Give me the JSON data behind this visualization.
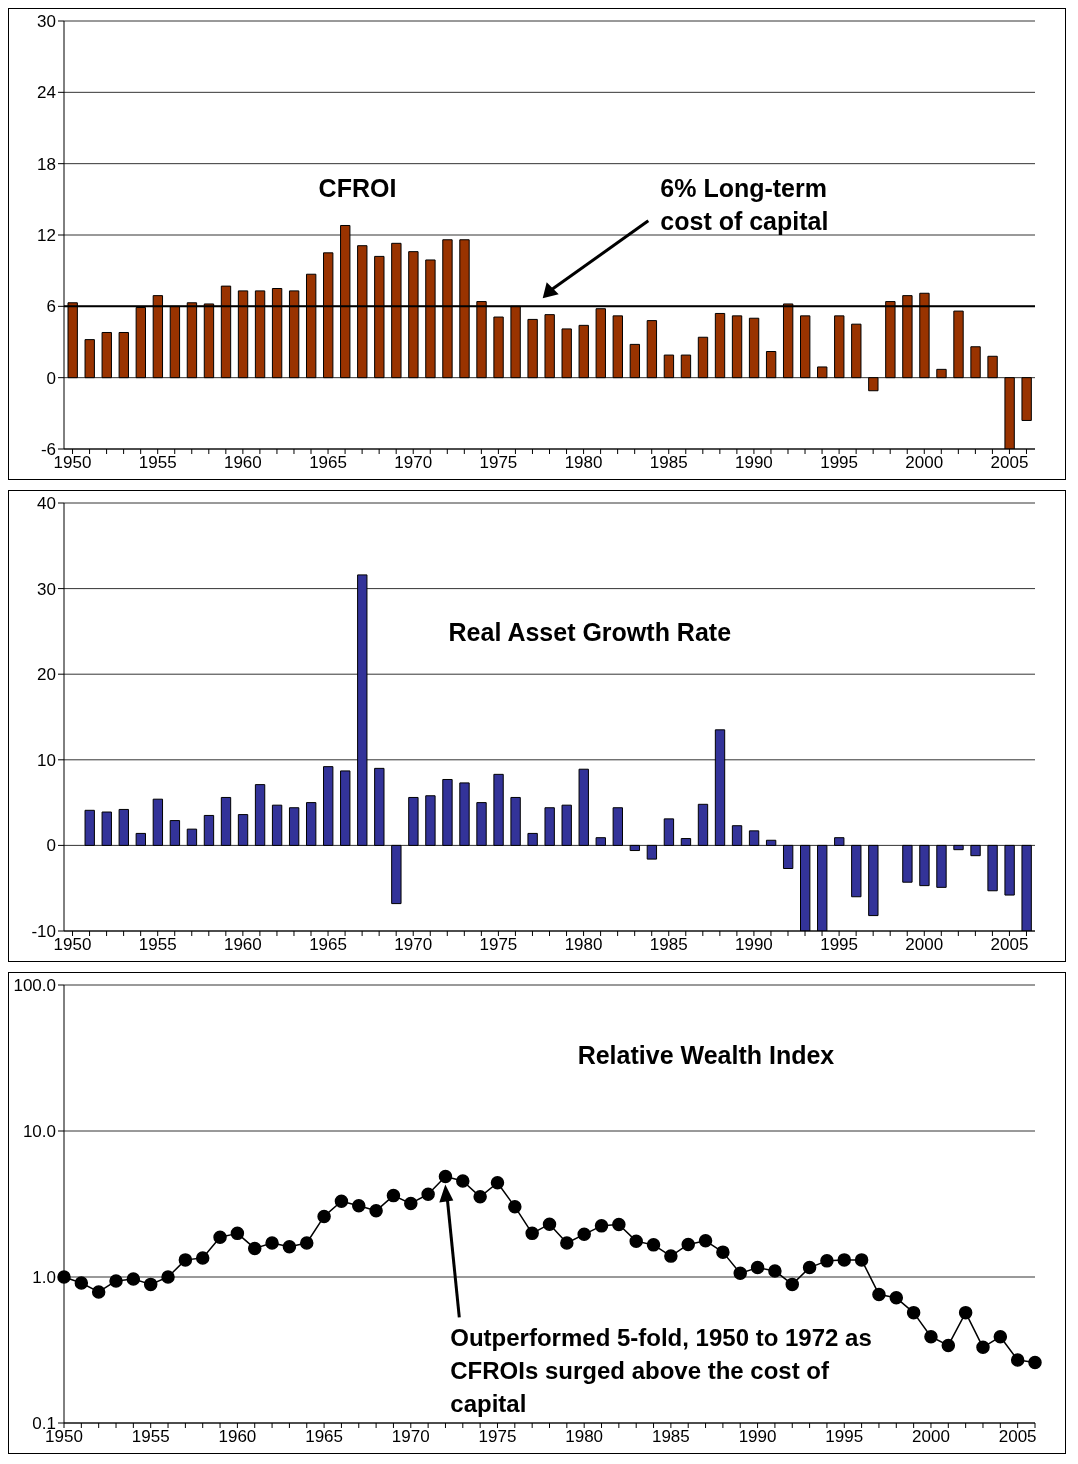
{
  "chart_data": [
    {
      "type": "bar",
      "title": "CFROI",
      "categories": [
        "1950",
        null,
        null,
        null,
        null,
        "1955",
        null,
        null,
        null,
        null,
        "1960",
        null,
        null,
        null,
        null,
        "1965",
        null,
        null,
        null,
        null,
        "1970",
        null,
        null,
        null,
        null,
        "1975",
        null,
        null,
        null,
        null,
        "1980",
        null,
        null,
        null,
        null,
        "1985",
        null,
        null,
        null,
        null,
        "1990",
        null,
        null,
        null,
        null,
        "1995",
        null,
        null,
        null,
        null,
        "2000",
        null,
        null,
        null,
        null,
        "2005",
        null
      ],
      "values": [
        6.3,
        3.2,
        3.8,
        3.8,
        5.9,
        6.9,
        6.0,
        6.3,
        6.2,
        7.7,
        7.3,
        7.3,
        7.5,
        7.3,
        8.7,
        10.5,
        12.8,
        11.1,
        10.2,
        11.3,
        10.6,
        9.9,
        11.6,
        11.6,
        6.4,
        5.1,
        6.0,
        4.9,
        5.3,
        4.1,
        4.4,
        5.8,
        5.2,
        2.8,
        4.8,
        1.9,
        1.9,
        3.4,
        5.4,
        5.2,
        5.0,
        2.2,
        6.2,
        5.2,
        0.9,
        5.2,
        4.5,
        -1.1,
        6.4,
        6.9,
        7.1,
        0.7,
        5.6,
        2.6,
        1.8,
        -6,
        -3.6
      ],
      "color": "#993300",
      "ylim": [
        -6,
        30
      ],
      "yticks": [
        -6,
        0,
        6,
        12,
        18,
        24,
        30
      ],
      "grid": "y",
      "ref_lines": [
        {
          "axis": "y",
          "value": 6,
          "label": "6% Long-term cost of capital",
          "color": "#000000"
        }
      ]
    },
    {
      "type": "bar",
      "title": "Real Asset Growth Rate",
      "categories": [
        "1950",
        null,
        null,
        null,
        null,
        "1955",
        null,
        null,
        null,
        null,
        "1960",
        null,
        null,
        null,
        null,
        "1965",
        null,
        null,
        null,
        null,
        "1970",
        null,
        null,
        null,
        null,
        "1975",
        null,
        null,
        null,
        null,
        "1980",
        null,
        null,
        null,
        null,
        "1985",
        null,
        null,
        null,
        null,
        "1990",
        null,
        null,
        null,
        null,
        "1995",
        null,
        null,
        null,
        null,
        "2000",
        null,
        null,
        null,
        null,
        "2005",
        null
      ],
      "values": [
        null,
        4.1,
        3.9,
        4.2,
        1.4,
        5.4,
        2.9,
        1.9,
        3.5,
        5.6,
        3.6,
        7.1,
        4.7,
        4.4,
        5.0,
        9.2,
        8.7,
        31.6,
        9.0,
        -6.8,
        5.6,
        5.8,
        7.7,
        7.3,
        5.0,
        8.3,
        5.6,
        1.4,
        4.4,
        4.7,
        8.9,
        0.9,
        4.4,
        -0.6,
        -1.6,
        3.1,
        0.8,
        4.8,
        13.5,
        2.3,
        1.7,
        0.6,
        -2.7,
        -10,
        -10,
        0.9,
        -6.0,
        -8.2,
        null,
        -4.3,
        -4.7,
        -4.9,
        -0.5,
        -1.2,
        -5.3,
        -5.8,
        -10
      ],
      "color": "#333399",
      "ylim": [
        -10,
        40
      ],
      "yticks": [
        -10,
        0,
        10,
        20,
        30,
        40
      ],
      "grid": "y"
    },
    {
      "type": "line",
      "title": "Relative Wealth Index",
      "categories": [
        "1950",
        null,
        null,
        null,
        null,
        "1955",
        null,
        null,
        null,
        null,
        "1960",
        null,
        null,
        null,
        null,
        "1965",
        null,
        null,
        null,
        null,
        "1970",
        null,
        null,
        null,
        null,
        "1975",
        null,
        null,
        null,
        null,
        "1980",
        null,
        null,
        null,
        null,
        "1985",
        null,
        null,
        null,
        null,
        "1990",
        null,
        null,
        null,
        null,
        "1995",
        null,
        null,
        null,
        null,
        "2000",
        null,
        null,
        null,
        null,
        "2005",
        null
      ],
      "values": [
        1.0,
        0.91,
        0.79,
        0.94,
        0.97,
        0.89,
        1.0,
        1.31,
        1.35,
        1.87,
        1.99,
        1.57,
        1.71,
        1.61,
        1.71,
        2.6,
        3.3,
        3.08,
        2.84,
        3.61,
        3.19,
        3.69,
        4.88,
        4.55,
        3.54,
        4.42,
        3.03,
        1.99,
        2.3,
        1.71,
        1.96,
        2.24,
        2.29,
        1.76,
        1.66,
        1.39,
        1.67,
        1.77,
        1.48,
        1.06,
        1.16,
        1.1,
        0.89,
        1.16,
        1.29,
        1.31,
        1.31,
        0.76,
        0.72,
        0.57,
        0.39,
        0.34,
        0.57,
        0.33,
        0.39,
        0.27,
        0.26
      ],
      "color": "#000000",
      "marker": "circle",
      "log": true,
      "ylim": [
        0.1,
        100
      ],
      "yticks": [
        {
          "value": 0.1,
          "label": "0.1"
        },
        {
          "value": 1,
          "label": "1.0"
        },
        {
          "value": 10,
          "label": "10.0"
        },
        {
          "value": 100,
          "label": "100.0"
        }
      ],
      "grid": "y",
      "annotations": [
        "Outperformed 5-fold, 1950 to 1972 as CFROIs surged above the cost of capital"
      ]
    }
  ]
}
